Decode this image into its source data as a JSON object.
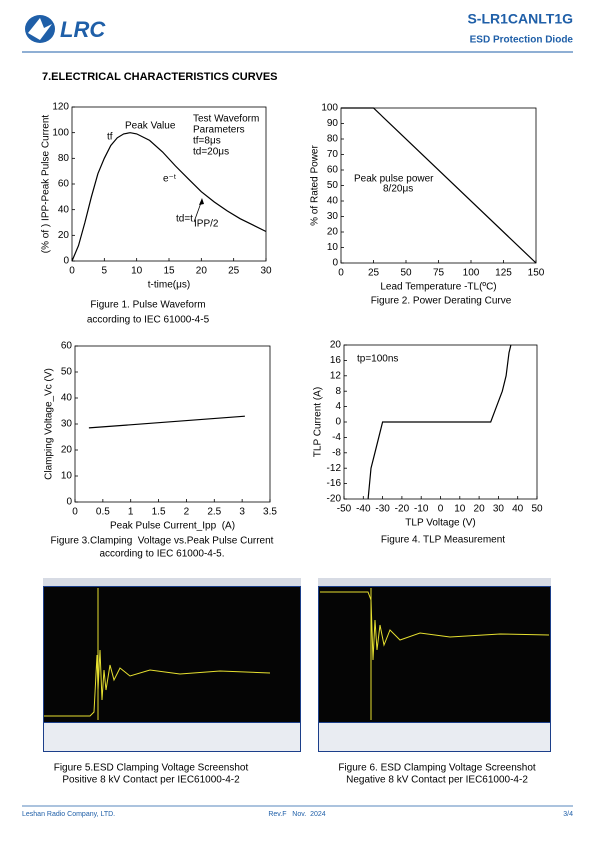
{
  "header": {
    "logo": "LRC",
    "part_number": "S-LR1CANLT1G",
    "subtitle": "ESD Protection Diode"
  },
  "section_title": "7.ELECTRICAL CHARACTERISTICS CURVES",
  "chart_data": [
    {
      "type": "line",
      "x_label": "t-time(μs)",
      "y_label": "(% of ) IPP-Peak Pulse Current",
      "annotations": [
        "Peak Value",
        "tf",
        "Test Waveform",
        "Parameters",
        "tf=8μs",
        "td=20μs",
        "e⁻ᵗ",
        "td=t",
        "IPP/2"
      ],
      "x": [
        0,
        1,
        2,
        3,
        4,
        5,
        6,
        7,
        8,
        9,
        10,
        12,
        14,
        16,
        18,
        20,
        22,
        24,
        26,
        28,
        30
      ],
      "values": [
        0,
        12,
        30,
        50,
        68,
        80,
        90,
        96,
        99,
        100,
        99,
        94,
        85,
        74,
        64,
        54,
        46,
        39,
        33,
        28,
        23
      ],
      "color": "#000000",
      "xlim": [
        0,
        30
      ],
      "xticks": [
        0,
        5,
        10,
        15,
        20,
        25,
        30
      ],
      "ylim": [
        0,
        120
      ],
      "yticks": [
        0,
        20,
        40,
        60,
        80,
        100,
        120
      ]
    },
    {
      "type": "line",
      "x_label": "Lead Temperature -TL(ºC)",
      "y_label": "% of Rated Power",
      "annotations": [
        "Peak pulse power",
        "8/20μs"
      ],
      "x": [
        0,
        25,
        150
      ],
      "values": [
        100,
        100,
        0
      ],
      "color": "#000000",
      "xlim": [
        0,
        150
      ],
      "xticks": [
        0,
        25,
        50,
        75,
        100,
        125,
        150
      ],
      "ylim": [
        0,
        100
      ],
      "yticks": [
        0,
        10,
        20,
        30,
        40,
        50,
        60,
        70,
        80,
        90,
        100
      ]
    },
    {
      "type": "line",
      "x_label": "Peak Pulse Current_Ipp  (A)",
      "y_label": "Clamping Voltage_Vc (V)",
      "annotations": [],
      "x": [
        0.25,
        3.05
      ],
      "values": [
        28.5,
        33
      ],
      "color": "#000000",
      "xlim": [
        0,
        3.5
      ],
      "xticks": [
        0,
        0.5,
        1,
        1.5,
        2,
        2.5,
        3,
        3.5
      ],
      "ylim": [
        0,
        60
      ],
      "yticks": [
        0,
        10,
        20,
        30,
        40,
        50,
        60
      ]
    },
    {
      "type": "line",
      "x_label": "TLP Voltage (V)",
      "y_label": "TLP Current (A)",
      "annotations": [
        "tp=100ns"
      ],
      "x": [
        -37.5,
        -36,
        -34,
        -30,
        26,
        29,
        32,
        34,
        35.5,
        36.5
      ],
      "values": [
        -20,
        -12,
        -8,
        0,
        0,
        4,
        8,
        12,
        18,
        20
      ],
      "color": "#000000",
      "xlim": [
        -50,
        50
      ],
      "xticks": [
        -50,
        -40,
        -30,
        -20,
        -10,
        0,
        10,
        20,
        30,
        40,
        50
      ],
      "ylim": [
        -20,
        20
      ],
      "yticks": [
        -20,
        -16,
        -12,
        -8,
        -4,
        0,
        4,
        8,
        12,
        16,
        20
      ]
    }
  ],
  "figures": [
    {
      "caption": [
        "Figure 1. Pulse Waveform",
        "according to IEC 61000-4-5"
      ]
    },
    {
      "caption": [
        "Figure 2. Power Derating Curve"
      ]
    },
    {
      "caption": [
        "Figure 3.Clamping  Voltage vs.Peak Pulse Current",
        "according to IEC 61000-4-5."
      ]
    },
    {
      "caption": [
        "Figure 4. TLP Measurement"
      ]
    },
    {
      "caption": [
        "Figure 5.ESD Clamping Voltage Screenshot",
        "Positive 8 kV Contact per IEC61000-4-2"
      ]
    },
    {
      "caption": [
        "Figure 6. ESD Clamping Voltage Screenshot",
        "Negative 8 kV Contact per IEC61000-4-2"
      ]
    }
  ],
  "footer": {
    "company": "Leshan Radio Company, LTD.",
    "revision": "Rev.F   Nov.  2024",
    "page": "3/4"
  }
}
